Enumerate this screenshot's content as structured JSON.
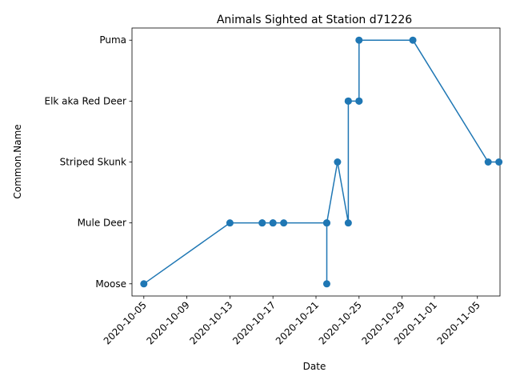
{
  "chart_data": {
    "type": "line",
    "title": "Animals Sighted at Station d71226",
    "xlabel": "Date",
    "ylabel": "Common.Name",
    "y_categories": [
      "Moose",
      "Mule Deer",
      "Striped Skunk",
      "Elk aka Red Deer",
      "Puma"
    ],
    "x_ticks": [
      "2020-10-05",
      "2020-10-09",
      "2020-10-13",
      "2020-10-17",
      "2020-10-21",
      "2020-10-25",
      "2020-10-29",
      "2020-11-01",
      "2020-11-05"
    ],
    "xlim": [
      "2020-10-04",
      "2020-11-07"
    ],
    "marker": "circle",
    "grid": false,
    "series": [
      {
        "color": "#1f77b4",
        "points": [
          {
            "x": "2020-10-05",
            "y": "Moose"
          },
          {
            "x": "2020-10-13",
            "y": "Mule Deer"
          },
          {
            "x": "2020-10-16",
            "y": "Mule Deer"
          },
          {
            "x": "2020-10-16",
            "y": "Mule Deer"
          },
          {
            "x": "2020-10-17",
            "y": "Mule Deer"
          },
          {
            "x": "2020-10-17",
            "y": "Mule Deer"
          },
          {
            "x": "2020-10-18",
            "y": "Mule Deer"
          },
          {
            "x": "2020-10-22",
            "y": "Mule Deer"
          },
          {
            "x": "2020-10-22",
            "y": "Moose"
          },
          {
            "x": "2020-10-22",
            "y": "Mule Deer"
          },
          {
            "x": "2020-10-23",
            "y": "Striped Skunk"
          },
          {
            "x": "2020-10-24",
            "y": "Mule Deer"
          },
          {
            "x": "2020-10-24",
            "y": "Elk aka Red Deer"
          },
          {
            "x": "2020-10-24",
            "y": "Elk aka Red Deer"
          },
          {
            "x": "2020-10-25",
            "y": "Elk aka Red Deer"
          },
          {
            "x": "2020-10-25",
            "y": "Elk aka Red Deer"
          },
          {
            "x": "2020-10-25",
            "y": "Puma"
          },
          {
            "x": "2020-10-30",
            "y": "Puma"
          },
          {
            "x": "2020-11-06",
            "y": "Striped Skunk"
          },
          {
            "x": "2020-11-07",
            "y": "Striped Skunk"
          }
        ]
      }
    ]
  }
}
